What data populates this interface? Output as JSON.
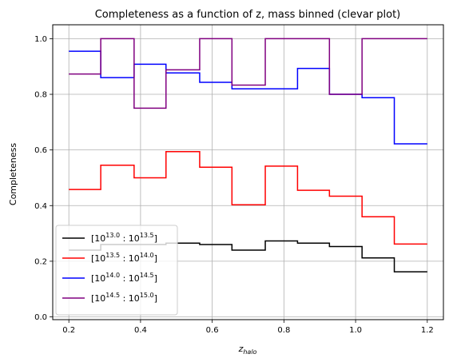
{
  "chart_data": {
    "type": "line",
    "step": "post",
    "title": "Completeness as a function of z, mass binned (clevar plot)",
    "xlabel": {
      "base": "z",
      "sub": "halo"
    },
    "ylabel": "Completeness",
    "xlim": [
      0.155,
      1.245
    ],
    "ylim": [
      -0.01,
      1.05
    ],
    "xticks": [
      0.2,
      0.4,
      0.6,
      0.8,
      1.0,
      1.2
    ],
    "xtick_labels": [
      "0.2",
      "0.4",
      "0.6",
      "0.8",
      "1.0",
      "1.2"
    ],
    "yticks": [
      0.0,
      0.2,
      0.4,
      0.6,
      0.8,
      1.0
    ],
    "ytick_labels": [
      "0.0",
      "0.2",
      "0.4",
      "0.6",
      "0.8",
      "1.0"
    ],
    "grid": true,
    "legend_position": "lower-left",
    "bin_edges": [
      0.2,
      0.289,
      0.382,
      0.471,
      0.565,
      0.655,
      0.748,
      0.838,
      0.927,
      1.018,
      1.108,
      1.2
    ],
    "series": [
      {
        "name": "[10^13.0 : 10^13.5]",
        "label": {
          "a": "13.0",
          "b": "13.5"
        },
        "color": "#000000",
        "values": [
          0.24,
          0.26,
          0.26,
          0.265,
          0.26,
          0.24,
          0.273,
          0.265,
          0.253,
          0.212,
          0.162
        ]
      },
      {
        "name": "[10^13.5 : 10^14.0]",
        "label": {
          "a": "13.5",
          "b": "14.0"
        },
        "color": "#ff0000",
        "values": [
          0.458,
          0.545,
          0.5,
          0.594,
          0.538,
          0.403,
          0.542,
          0.455,
          0.434,
          0.36,
          0.262
        ]
      },
      {
        "name": "[10^14.0 : 10^14.5]",
        "label": {
          "a": "14.0",
          "b": "14.5"
        },
        "color": "#0000ff",
        "values": [
          0.955,
          0.86,
          0.908,
          0.877,
          0.843,
          0.82,
          0.82,
          0.893,
          0.8,
          0.788,
          0.622
        ]
      },
      {
        "name": "[10^14.5 : 10^15.0]",
        "label": {
          "a": "14.5",
          "b": "15.0"
        },
        "color": "#800080",
        "values": [
          0.873,
          1.0,
          0.75,
          0.888,
          1.0,
          0.833,
          1.0,
          1.0,
          0.8,
          1.0,
          1.0
        ]
      }
    ]
  }
}
